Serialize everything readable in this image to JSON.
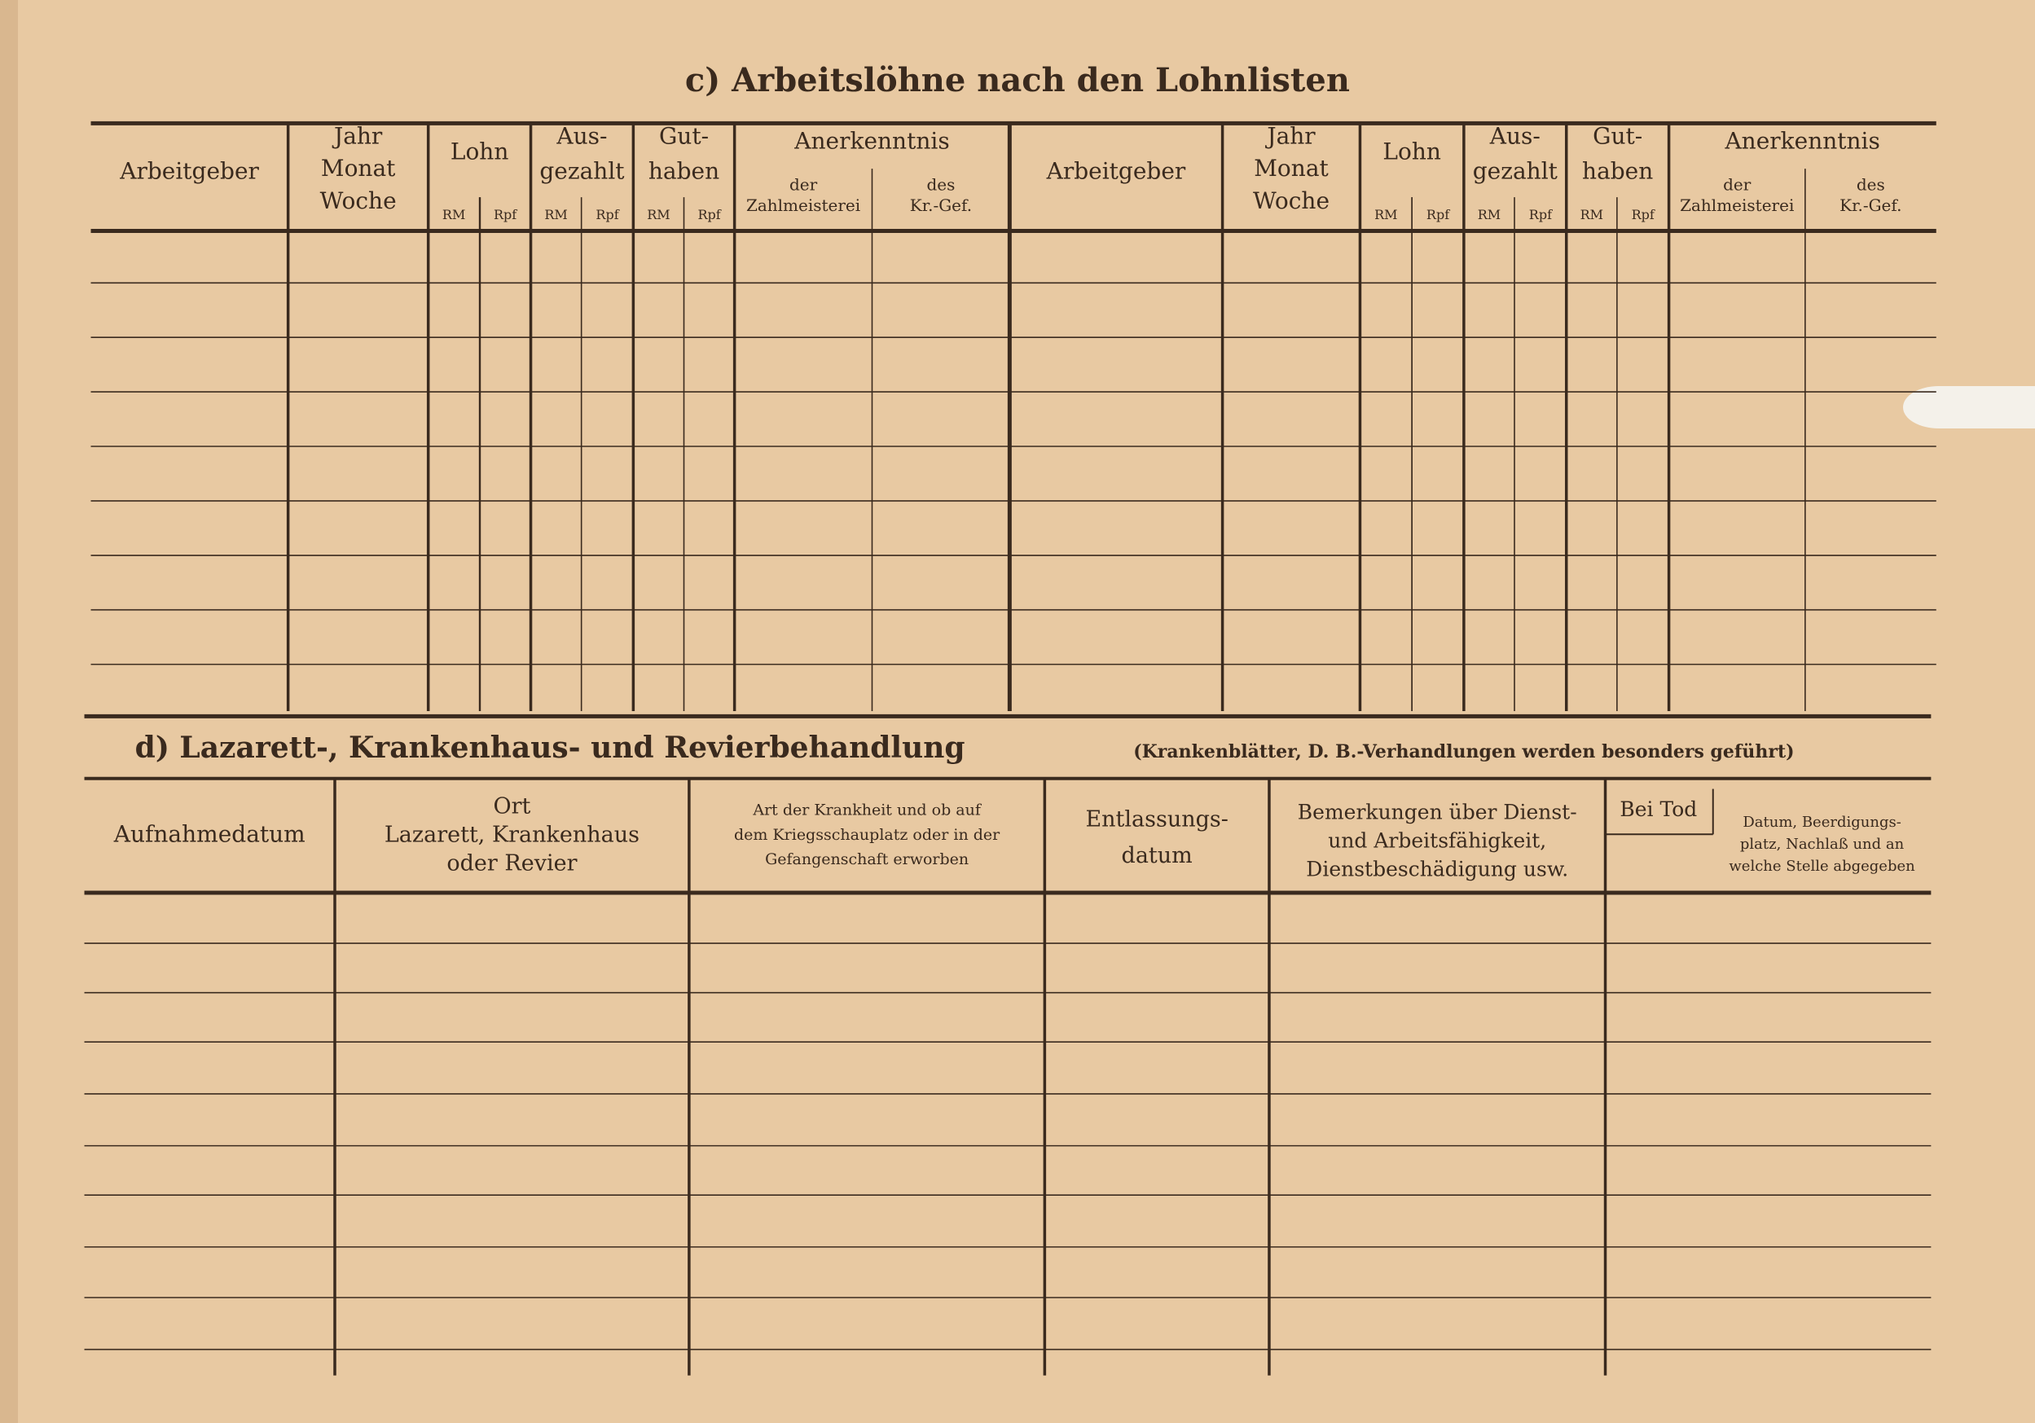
{
  "section_c": {
    "title": "c) Arbeitslöhne nach den Lohnlisten",
    "columns": {
      "employer": "Arbeitgeber",
      "period": [
        "Jahr",
        "Monat",
        "Woche"
      ],
      "wage": "Lohn",
      "paid": [
        "Aus-",
        "gezahlt"
      ],
      "credit": [
        "Gut-",
        "haben"
      ],
      "acknowledgement": "Anerkenntnis",
      "paymaster": [
        "der",
        "Zahlmeisterei"
      ],
      "district": [
        "des",
        "Kr.-Gef."
      ],
      "currency": [
        "RM",
        "Rpf"
      ]
    }
  },
  "section_d": {
    "title": "d) Lazarett-, Krankenhaus- und Revierbehandlung",
    "note": "(Krankenblätter, D. B.-Verhandlungen werden besonders geführt)",
    "columns": {
      "admission": [
        "Aufnahmedatum"
      ],
      "place": [
        "Ort",
        "Lazarett, Krankenhaus",
        "oder Revier"
      ],
      "illness": [
        "Art der Krankheit und ob auf",
        "dem Kriegsschauplatz oder in der",
        "Gefangenschaft erworben"
      ],
      "discharge": [
        "Entlassungs-",
        "datum"
      ],
      "remarks": [
        "Bemerkungen über Dienst-",
        "und Arbeitsfähigkeit,",
        "Dienstbeschädigung usw."
      ],
      "death": "Bei Tod",
      "death_details": [
        "Datum, Beerdigungs-",
        "platz, Nachlaß und an",
        "welche Stelle abgegeben"
      ]
    }
  }
}
